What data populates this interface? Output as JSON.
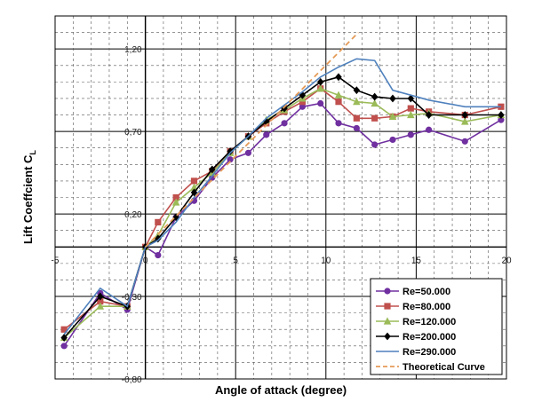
{
  "chart_data": {
    "type": "line",
    "title": "",
    "xlabel": "Angle of attack (degree)",
    "ylabel_main": "Lift Coeffcient C",
    "ylabel_sub": "L",
    "xlim": [
      -5,
      20
    ],
    "ylim": [
      -0.8,
      1.4
    ],
    "x_ticks": [
      -5,
      0,
      5,
      10,
      15,
      20
    ],
    "x_tick_labels": [
      "-5",
      "0",
      "5",
      "10",
      "15",
      "20"
    ],
    "y_ticks": [
      1.2,
      0.7,
      0.2,
      -0.3,
      -0.8
    ],
    "y_tick_labels": [
      "1,20",
      "0,70",
      "0,20",
      "-0,30",
      "-0,80"
    ],
    "grid": true,
    "legend_position": "bottom-right",
    "series": [
      {
        "name": "Re=50.000",
        "color": "#7030a0",
        "marker": "circle",
        "dash": false,
        "x": [
          -4.5,
          -2.5,
          -1,
          0,
          0.7,
          1.7,
          2.7,
          3.7,
          4.7,
          5.7,
          6.7,
          7.7,
          8.7,
          9.7,
          10.7,
          11.7,
          12.7,
          13.7,
          14.7,
          15.7,
          17.7,
          19.7
        ],
        "y": [
          -0.6,
          -0.28,
          -0.38,
          0,
          -0.05,
          0.18,
          0.28,
          0.42,
          0.53,
          0.57,
          0.68,
          0.75,
          0.85,
          0.87,
          0.75,
          0.72,
          0.62,
          0.65,
          0.68,
          0.71,
          0.64,
          0.77
        ]
      },
      {
        "name": "Re=80.000",
        "color": "#c0504d",
        "marker": "square",
        "dash": false,
        "x": [
          -4.5,
          -2.5,
          -1,
          0,
          0.7,
          1.7,
          2.7,
          3.7,
          4.7,
          5.7,
          6.7,
          7.7,
          8.7,
          9.7,
          10.7,
          11.7,
          12.7,
          13.7,
          14.7,
          15.7,
          17.7,
          19.7
        ],
        "y": [
          -0.5,
          -0.33,
          -0.36,
          0,
          0.15,
          0.3,
          0.4,
          0.46,
          0.58,
          0.67,
          0.75,
          0.82,
          0.88,
          0.96,
          0.88,
          0.78,
          0.78,
          0.79,
          0.84,
          0.82,
          0.8,
          0.85
        ]
      },
      {
        "name": "Re=120.000",
        "color": "#9bbb59",
        "marker": "triangle",
        "dash": false,
        "x": [
          -4.5,
          -2.5,
          -1,
          0,
          0.7,
          1.7,
          2.7,
          3.7,
          4.7,
          5.7,
          6.7,
          7.7,
          8.7,
          9.7,
          10.7,
          11.7,
          12.7,
          13.7,
          14.7,
          15.7,
          17.7,
          19.7
        ],
        "y": [
          -0.55,
          -0.36,
          -0.36,
          0,
          0.07,
          0.27,
          0.36,
          0.45,
          0.57,
          0.67,
          0.77,
          0.83,
          0.9,
          0.96,
          0.92,
          0.88,
          0.87,
          0.79,
          0.8,
          0.81,
          0.76,
          0.8
        ]
      },
      {
        "name": "Re=200.000",
        "color": "#000000",
        "marker": "diamond",
        "dash": false,
        "x": [
          -4.5,
          -2.5,
          -1,
          0,
          0.7,
          1.7,
          2.7,
          3.7,
          4.7,
          5.7,
          6.7,
          7.7,
          8.7,
          9.7,
          10.7,
          11.7,
          12.7,
          13.7,
          14.7,
          15.7,
          17.7,
          19.7
        ],
        "y": [
          -0.55,
          -0.3,
          -0.36,
          0,
          0.05,
          0.18,
          0.33,
          0.47,
          0.58,
          0.67,
          0.76,
          0.84,
          0.92,
          1.0,
          1.03,
          0.95,
          0.91,
          0.9,
          0.9,
          0.8,
          0.8,
          0.8
        ]
      },
      {
        "name": "Re=290.000",
        "color": "#4f81bd",
        "marker": "none",
        "dash": false,
        "x": [
          -4.5,
          -2.5,
          -1,
          0,
          0.7,
          1.7,
          2.7,
          3.7,
          4.7,
          5.7,
          6.7,
          7.7,
          8.7,
          9.7,
          10.7,
          11.7,
          12.7,
          13.7,
          14.7,
          15.7,
          17.7,
          19.7
        ],
        "y": [
          -0.53,
          -0.25,
          -0.36,
          0,
          0.04,
          0.15,
          0.3,
          0.43,
          0.57,
          0.67,
          0.78,
          0.86,
          0.94,
          1.03,
          1.09,
          1.14,
          1.13,
          0.95,
          0.92,
          0.89,
          0.85,
          0.85
        ]
      },
      {
        "name": "Theoretical Curve",
        "color": "#e59b58",
        "marker": "none",
        "dash": true,
        "x": [
          0,
          11.8
        ],
        "y": [
          0,
          1.3
        ]
      }
    ]
  }
}
